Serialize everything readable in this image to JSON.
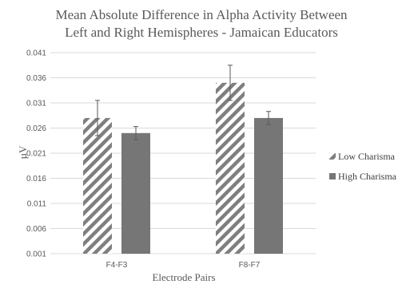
{
  "chart_data": {
    "type": "bar",
    "title_line1": "Mean Absolute Difference in Alpha Activity Between",
    "title_line2": "Left and Right Hemispheres - Jamaican Educators",
    "xlabel": "Electrode Pairs",
    "ylabel": "µV",
    "categories": [
      "F4-F3",
      "F8-F7"
    ],
    "ylim": [
      0.001,
      0.041
    ],
    "yticks": [
      "0.041",
      "0.036",
      "0.031",
      "0.026",
      "0.021",
      "0.016",
      "0.011",
      "0.006",
      "0.001"
    ],
    "grid": true,
    "legend_position": "right",
    "series": [
      {
        "name": "Low Charisma",
        "values": [
          0.028,
          0.035
        ],
        "error": [
          0.0035,
          0.0035
        ],
        "pattern": "diagonal-stripes",
        "color": "#7f7f7f"
      },
      {
        "name": "High Charisma",
        "values": [
          0.025,
          0.028
        ],
        "error": [
          0.0013,
          0.0013
        ],
        "pattern": "solid",
        "color": "#767676"
      }
    ]
  }
}
